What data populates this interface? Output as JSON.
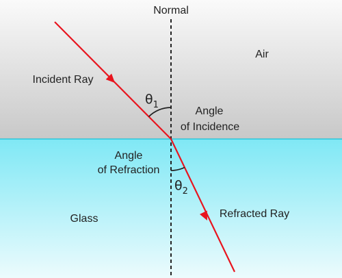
{
  "labels": {
    "normal": "Normal",
    "air": "Air",
    "glass": "Glass",
    "incident_ray": "Incident Ray",
    "refracted_ray": "Refracted Ray",
    "angle_incidence_line1": "Angle",
    "angle_incidence_line2": "of Incidence",
    "angle_refraction_line1": "Angle",
    "angle_refraction_line2": "of Refraction",
    "theta": "θ",
    "theta1_sub": "1",
    "theta2_sub": "2"
  },
  "colors": {
    "air_top": "#fafafa",
    "air_bottom": "#c8c8c8",
    "glass_top": "#7fe8f5",
    "glass_bottom": "#ecfbfd",
    "interface_line": "#28c8dc",
    "ray": "#e8141e",
    "normal_line": "#222222",
    "arc": "#222222"
  }
}
